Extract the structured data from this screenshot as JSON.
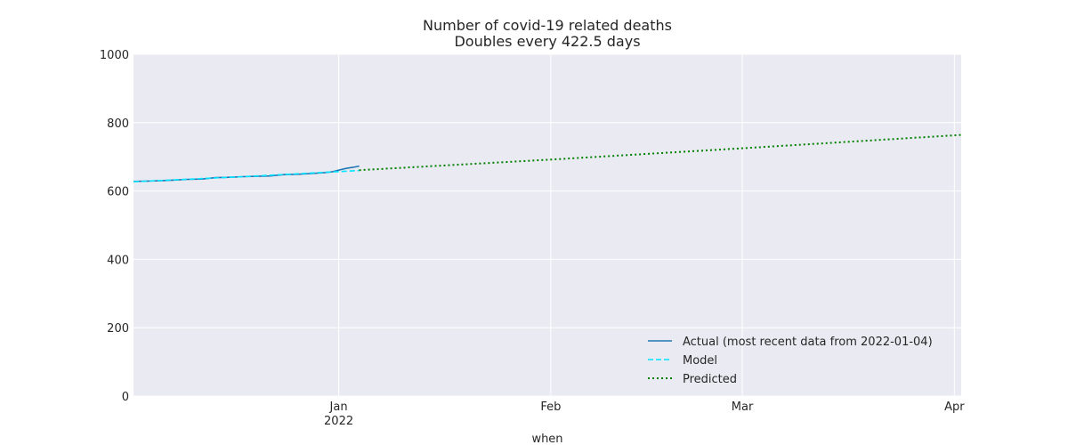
{
  "chart_data": {
    "type": "line",
    "title": "Number of covid-19 related deaths",
    "subtitle": "Doubles every 422.5 days",
    "xlabel": "when",
    "ylabel": "",
    "xlim": [
      "2021-12-02",
      "2022-04-02"
    ],
    "ylim": [
      0,
      1000
    ],
    "yticks": [
      0,
      200,
      400,
      600,
      800,
      1000
    ],
    "xticks": [
      {
        "date": "2022-01-01",
        "label": "Jan",
        "sublabel": "2022"
      },
      {
        "date": "2022-02-01",
        "label": "Feb",
        "sublabel": ""
      },
      {
        "date": "2022-03-01",
        "label": "Mar",
        "sublabel": ""
      },
      {
        "date": "2022-04-01",
        "label": "Apr",
        "sublabel": ""
      }
    ],
    "grid": true,
    "legend_position": "bottom-right",
    "series": [
      {
        "name": "Actual (most recent data from 2022-01-04)",
        "style": "solid",
        "color": "#1f77b4",
        "points": [
          [
            "2021-12-02",
            628
          ],
          [
            "2021-12-04",
            629
          ],
          [
            "2021-12-06",
            630
          ],
          [
            "2021-12-08",
            632
          ],
          [
            "2021-12-10",
            634
          ],
          [
            "2021-12-12",
            635
          ],
          [
            "2021-12-14",
            639
          ],
          [
            "2021-12-16",
            640
          ],
          [
            "2021-12-18",
            642
          ],
          [
            "2021-12-20",
            643
          ],
          [
            "2021-12-22",
            644
          ],
          [
            "2021-12-24",
            648
          ],
          [
            "2021-12-26",
            649
          ],
          [
            "2021-12-28",
            651
          ],
          [
            "2021-12-30",
            654
          ],
          [
            "2021-12-31",
            656
          ],
          [
            "2022-01-01",
            661
          ],
          [
            "2022-01-02",
            666
          ],
          [
            "2022-01-03",
            669
          ],
          [
            "2022-01-04",
            673
          ]
        ]
      },
      {
        "name": "Model",
        "style": "dashed",
        "color": "#00e5ff",
        "points": [
          [
            "2021-12-02",
            627
          ],
          [
            "2021-12-18",
            642
          ],
          [
            "2022-01-04",
            660
          ]
        ]
      },
      {
        "name": "Predicted",
        "style": "dotted",
        "color": "#008000",
        "points": [
          [
            "2022-01-04",
            661
          ],
          [
            "2022-02-01",
            692
          ],
          [
            "2022-03-01",
            725
          ],
          [
            "2022-04-02",
            764
          ]
        ]
      }
    ]
  }
}
